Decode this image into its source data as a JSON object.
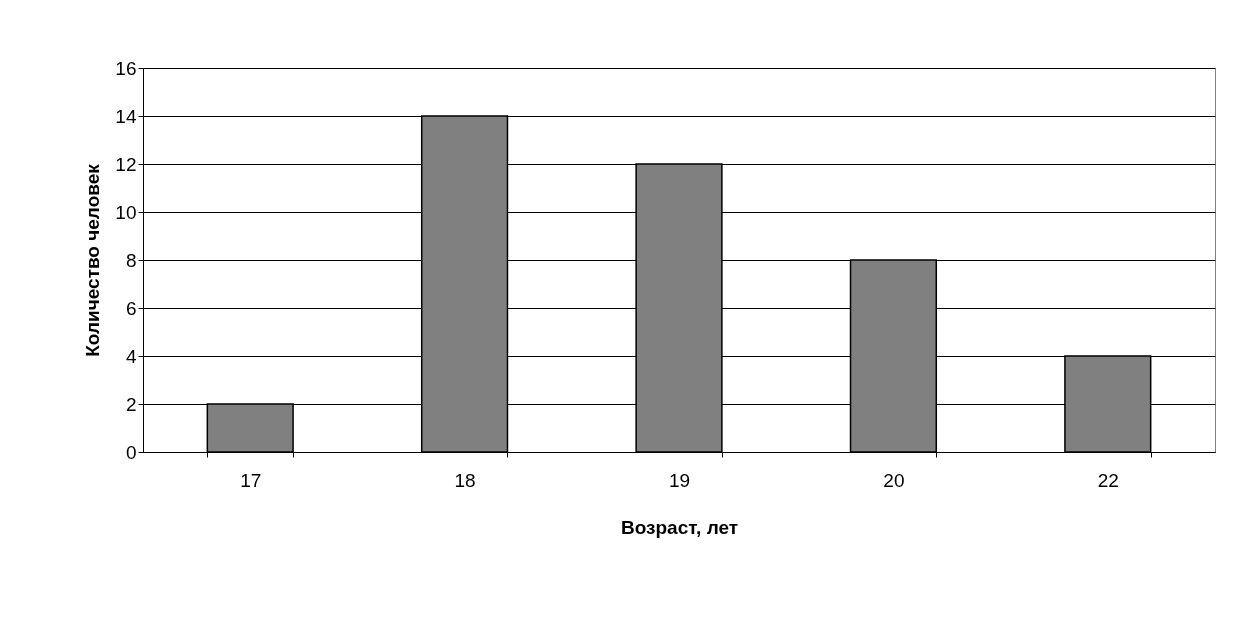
{
  "chart_data": {
    "type": "bar",
    "xlabel": "Возраст, лет",
    "ylabel": "Количество человек",
    "categories": [
      "17",
      "18",
      "19",
      "20",
      "22"
    ],
    "values": [
      2,
      14,
      12,
      8,
      4
    ],
    "color": "#808080",
    "ylim": [
      0,
      16
    ],
    "yticks": [
      0,
      2,
      4,
      6,
      8,
      10,
      12,
      14,
      16
    ],
    "grid": "y"
  }
}
